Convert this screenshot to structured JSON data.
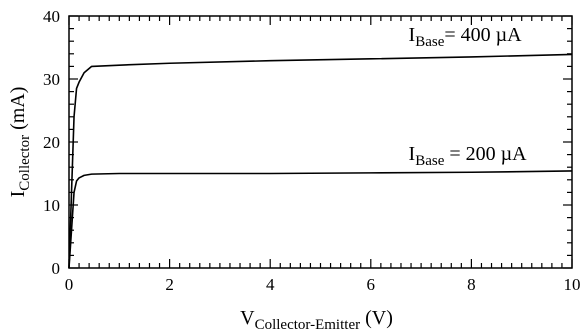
{
  "chart_data": {
    "type": "line",
    "title": "",
    "xlabel": {
      "main": "V",
      "sub": "Collector-Emitter",
      "unit": " (V)"
    },
    "ylabel": {
      "main": "I",
      "sub": "Collector",
      "unit": " (mA)"
    },
    "xlim": [
      0,
      10
    ],
    "ylim": [
      0,
      40
    ],
    "x_ticks": [
      "0",
      "2",
      "4",
      "6",
      "8",
      "10"
    ],
    "y_ticks": [
      "0",
      "10",
      "20",
      "30",
      "40"
    ],
    "grid": false,
    "legend": "none",
    "series": [
      {
        "label": {
          "main": "I",
          "sub": "Base",
          "value": "= 400 µA"
        },
        "color": "#000000",
        "x": [
          0,
          0.05,
          0.1,
          0.15,
          0.2,
          0.3,
          0.45,
          1,
          2,
          4,
          6,
          8,
          10
        ],
        "y": [
          0,
          12,
          24,
          28.5,
          29.5,
          31,
          32,
          32.2,
          32.5,
          32.9,
          33.2,
          33.5,
          33.9
        ]
      },
      {
        "label": {
          "main": "I",
          "sub": "Base",
          "value": " = 200 µA"
        },
        "color": "#000000",
        "x": [
          0,
          0.05,
          0.1,
          0.15,
          0.2,
          0.3,
          0.45,
          1,
          2,
          4,
          6,
          8,
          10
        ],
        "y": [
          0,
          6,
          12,
          13.8,
          14.3,
          14.7,
          14.9,
          15.0,
          15.0,
          15.0,
          15.1,
          15.2,
          15.4
        ]
      }
    ]
  }
}
